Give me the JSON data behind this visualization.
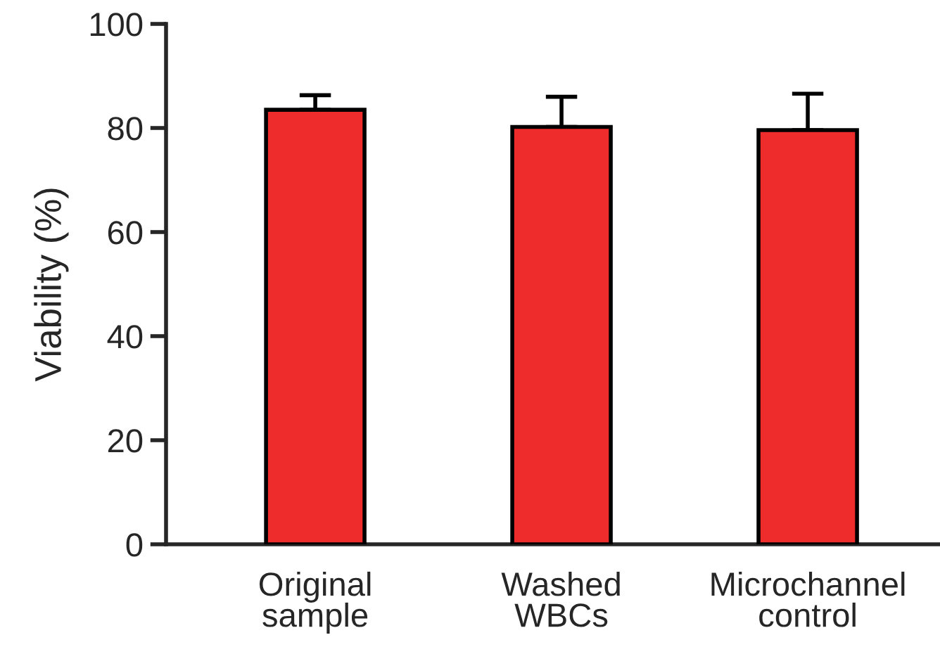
{
  "chart_data": {
    "type": "bar",
    "ylabel": "Viability (%)",
    "categories": [
      "Original\nsample",
      "Washed\nWBCs",
      "Microchannel\ncontrol"
    ],
    "values": [
      83.5,
      80.2,
      79.6
    ],
    "errors": [
      [
        83.5,
        86.3
      ],
      [
        80.2,
        86.0
      ],
      [
        79.6,
        86.6
      ]
    ],
    "color": "#ee2c2c",
    "ylim": [
      0,
      100
    ],
    "yticks": [
      0,
      20,
      40,
      60,
      80,
      100
    ],
    "grid": false
  }
}
